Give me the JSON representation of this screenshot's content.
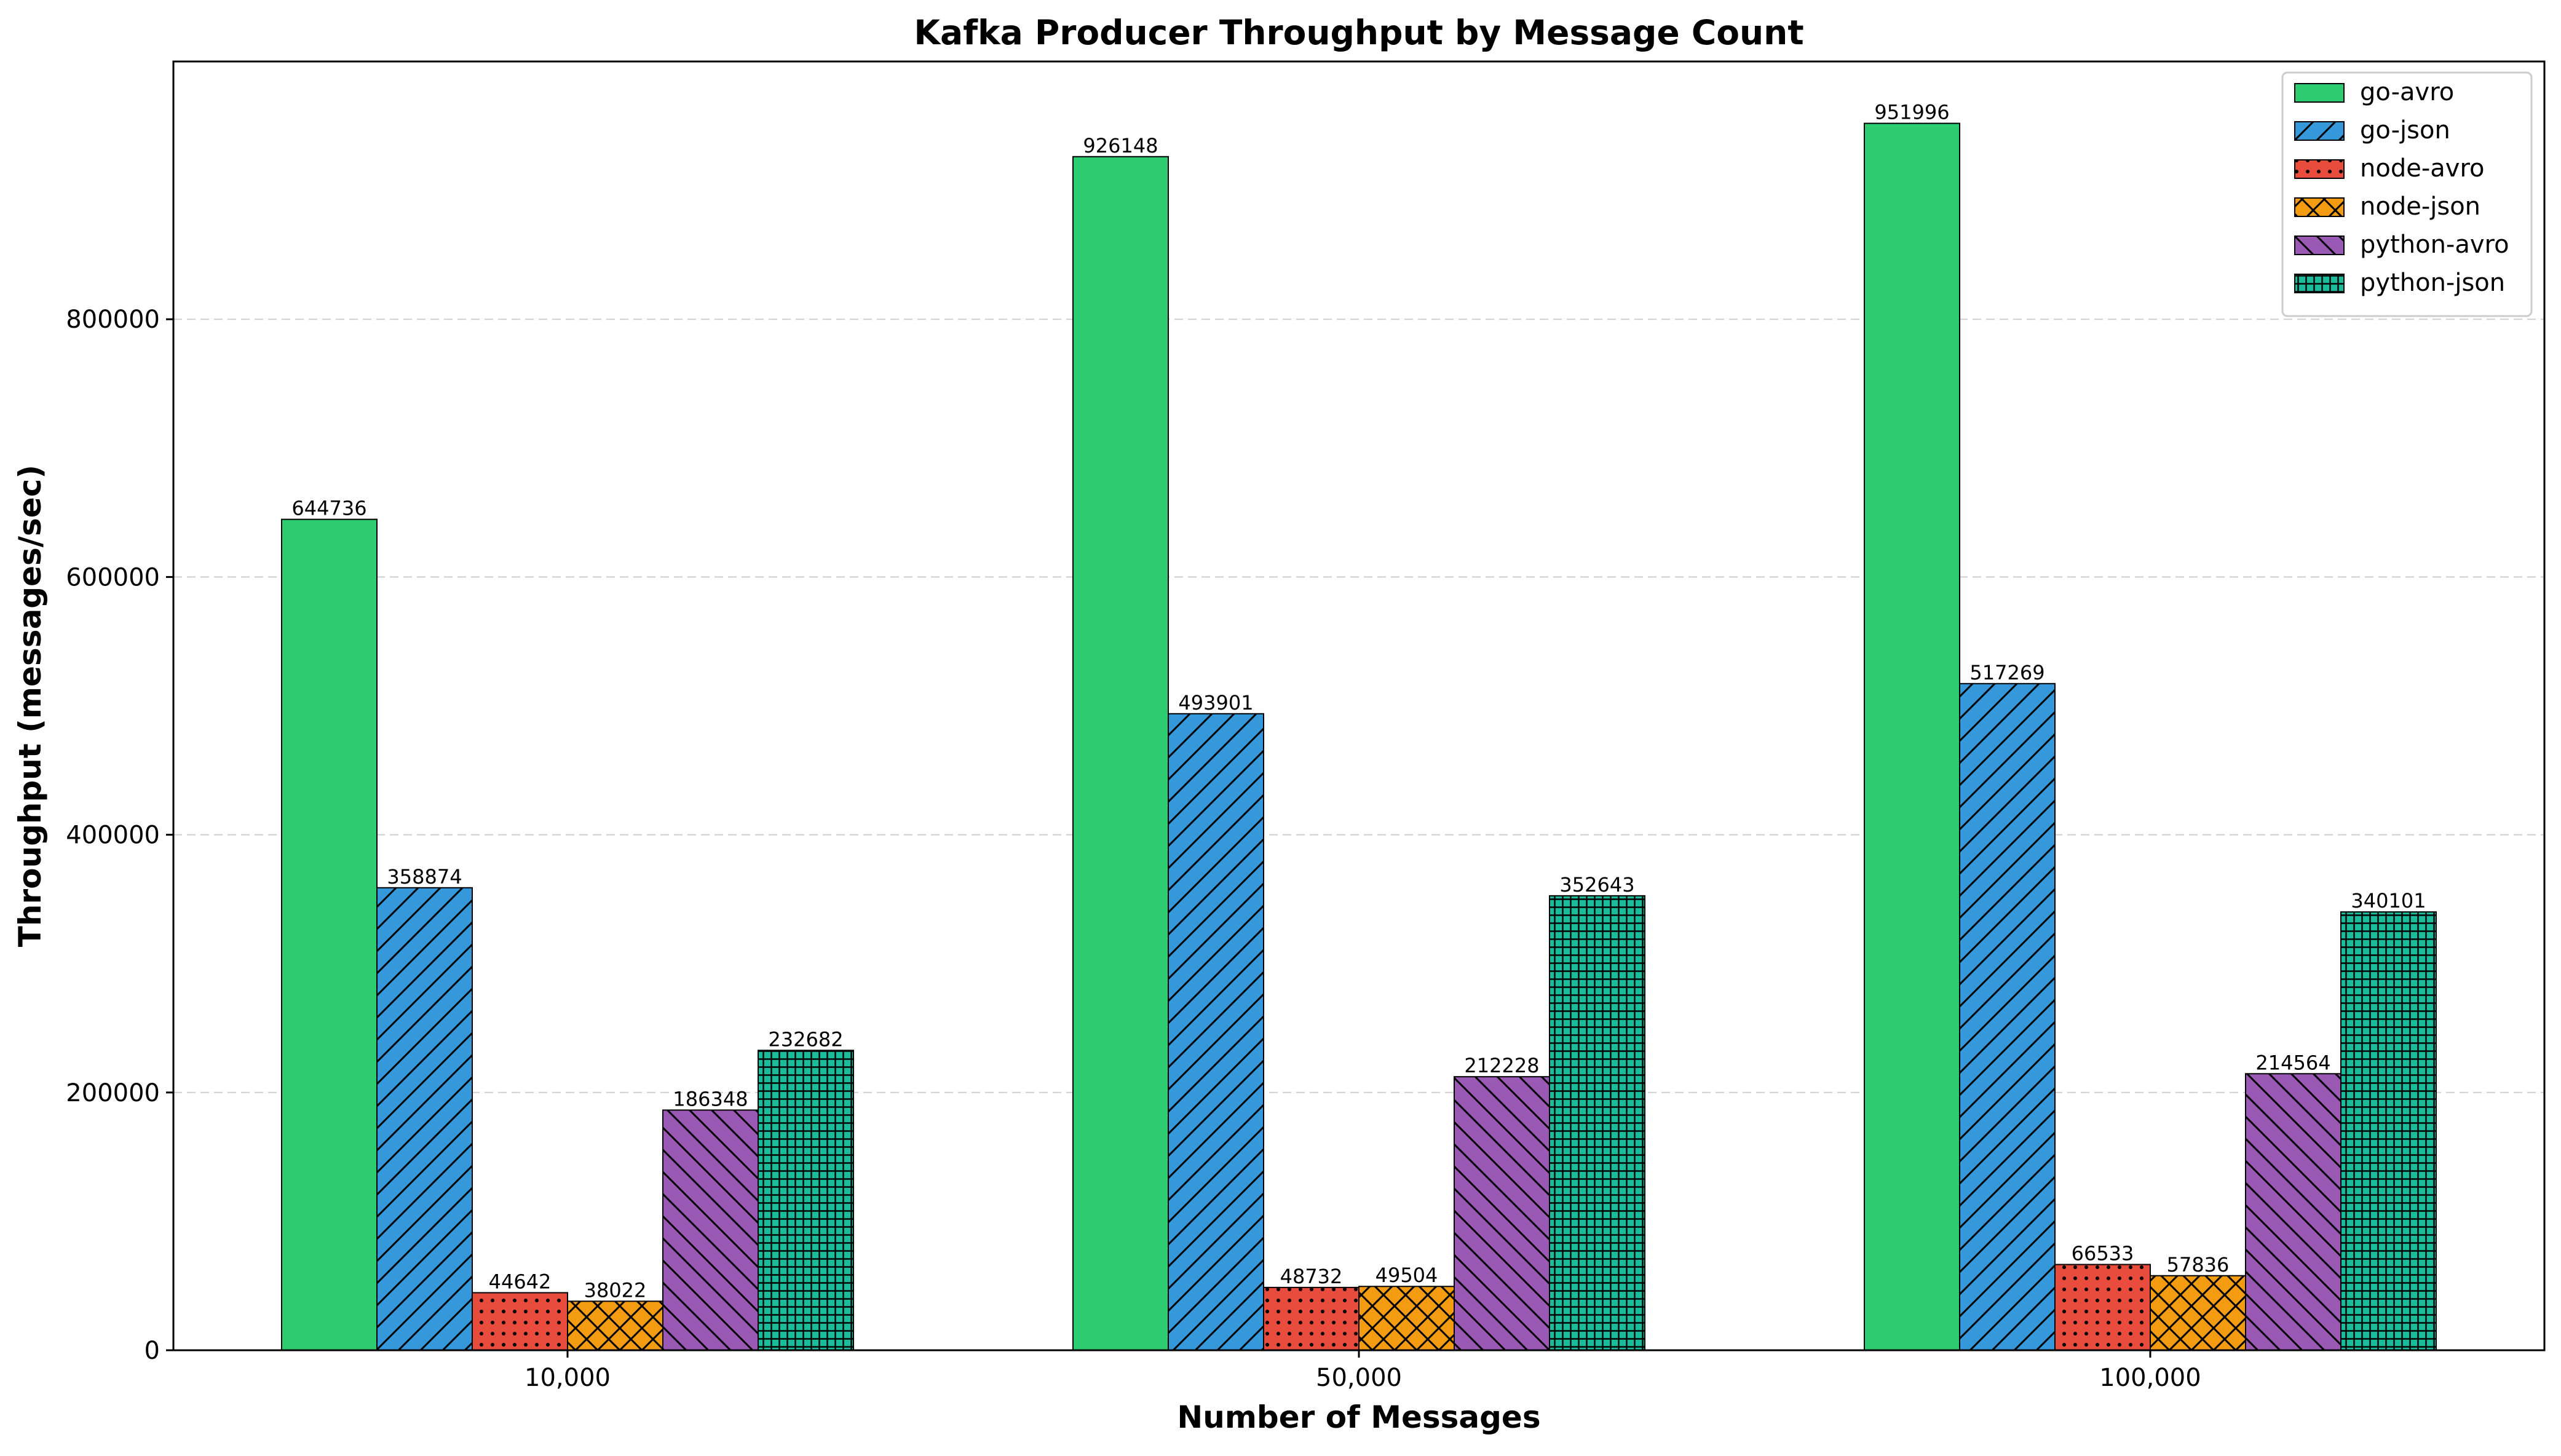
{
  "chart_data": {
    "type": "bar",
    "title": "Kafka Producer Throughput by Message Count",
    "xlabel": "Number of Messages",
    "ylabel": "Throughput (messages/sec)",
    "categories": [
      "10,000",
      "50,000",
      "100,000"
    ],
    "ylim": [
      0,
      1000000
    ],
    "yticks": [
      "0",
      "200000",
      "400000",
      "600000",
      "800000"
    ],
    "ytick_values": [
      0,
      200000,
      400000,
      600000,
      800000
    ],
    "grid": "y-dashed",
    "legend_position": "top-right",
    "series": [
      {
        "name": "go-avro",
        "values": [
          644736,
          926148,
          951996
        ],
        "color": "#2ecc71",
        "pattern": "solid"
      },
      {
        "name": "go-json",
        "values": [
          358874,
          493901,
          517269
        ],
        "color": "#3498db",
        "pattern": "diagonal"
      },
      {
        "name": "node-avro",
        "values": [
          44642,
          48732,
          66533
        ],
        "color": "#e74c3c",
        "pattern": "dots"
      },
      {
        "name": "node-json",
        "values": [
          38022,
          49504,
          57836
        ],
        "color": "#f39c12",
        "pattern": "crosshatch-diag"
      },
      {
        "name": "python-avro",
        "values": [
          186348,
          212228,
          214564
        ],
        "color": "#9b59b6",
        "pattern": "back-diagonal"
      },
      {
        "name": "python-json",
        "values": [
          232682,
          352643,
          340101
        ],
        "color": "#1abc9c",
        "pattern": "grid"
      }
    ]
  }
}
